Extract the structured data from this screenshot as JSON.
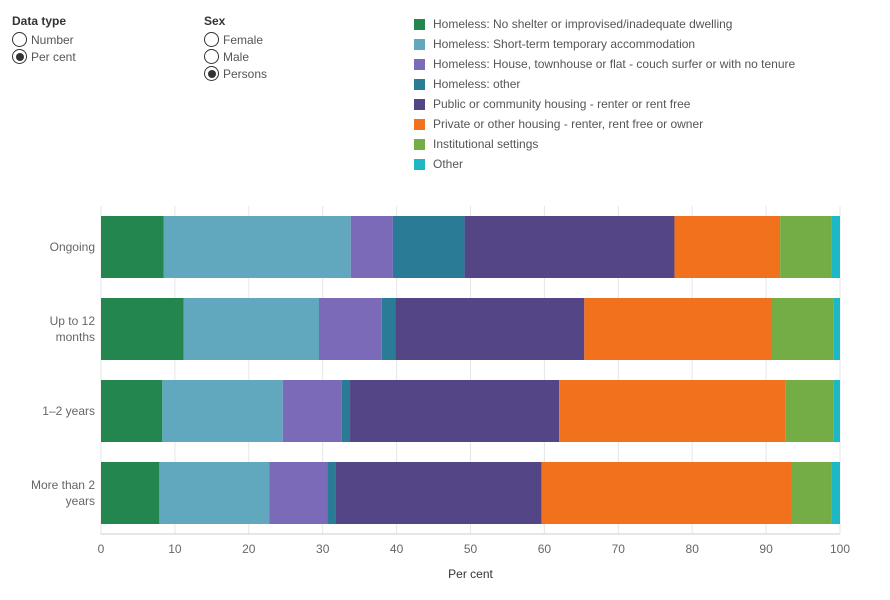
{
  "filters": {
    "data_type": {
      "title": "Data type",
      "options": [
        {
          "label": "Number",
          "selected": false
        },
        {
          "label": "Per cent",
          "selected": true
        }
      ]
    },
    "sex": {
      "title": "Sex",
      "options": [
        {
          "label": "Female",
          "selected": false
        },
        {
          "label": "Male",
          "selected": false
        },
        {
          "label": "Persons",
          "selected": true
        }
      ]
    }
  },
  "chart_data": {
    "type": "bar",
    "orientation": "horizontal",
    "stacked": true,
    "xlabel": "Per cent",
    "xlim": [
      0,
      100
    ],
    "xticks": [
      0,
      10,
      20,
      30,
      40,
      50,
      60,
      70,
      80,
      90,
      100
    ],
    "grid": true,
    "legend_position": "top-right",
    "categories": [
      [
        "Ongoing"
      ],
      [
        "Up to 12",
        "months"
      ],
      [
        "1–2 years"
      ],
      [
        "More than 2",
        "years"
      ]
    ],
    "series": [
      {
        "name": "Homeless: No shelter or improvised/inadequate dwelling",
        "color": "#23864f",
        "values": [
          8.5,
          11.2,
          8.3,
          7.9
        ]
      },
      {
        "name": "Homeless: Short-term temporary accommodation",
        "color": "#61a8be",
        "values": [
          25.3,
          18.3,
          16.3,
          14.9
        ]
      },
      {
        "name": "Homeless: House, townhouse or flat - couch surfer or with no tenure",
        "color": "#7b6ab8",
        "values": [
          5.7,
          8.5,
          8.0,
          7.8
        ]
      },
      {
        "name": "Homeless: other",
        "color": "#2a7b96",
        "values": [
          9.7,
          1.8,
          1.1,
          1.1
        ]
      },
      {
        "name": "Public or community housing - renter or rent free",
        "color": "#544587",
        "values": [
          28.4,
          25.6,
          28.3,
          27.9
        ]
      },
      {
        "name": "Private or other housing - renter, rent free or owner",
        "color": "#f2711d",
        "values": [
          14.3,
          25.4,
          30.6,
          33.9
        ]
      },
      {
        "name": "Institutional settings",
        "color": "#74ad45",
        "values": [
          6.9,
          8.3,
          6.5,
          5.3
        ]
      },
      {
        "name": "Other",
        "color": "#1db8c6",
        "values": [
          1.2,
          0.9,
          0.9,
          1.2
        ]
      }
    ]
  }
}
